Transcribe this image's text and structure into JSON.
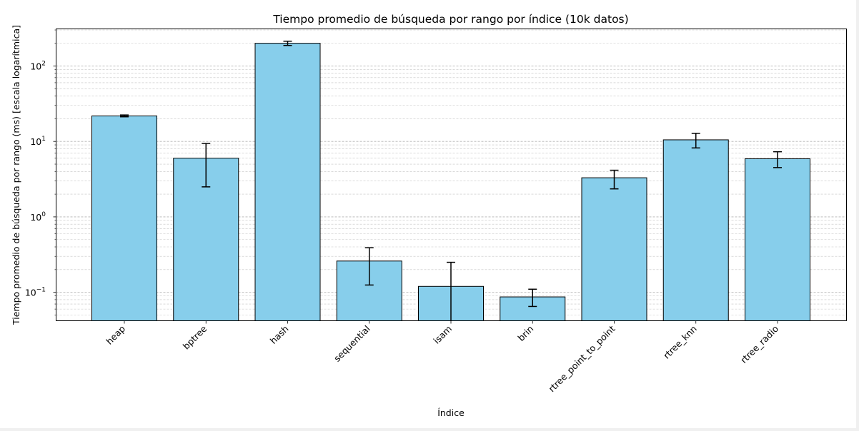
{
  "chart_data": {
    "type": "bar",
    "title": "Tiempo promedio de búsqueda por rango por índice (10k datos)",
    "xlabel": "Índice",
    "ylabel": "Tiempo promedio de búsqueda por rango (ms) [escala logarítmica]",
    "yscale": "log",
    "ylim": [
      0.042,
      310
    ],
    "grid": "y, major and minor, dashed",
    "categories": [
      "heap",
      "bptree",
      "hash",
      "sequential",
      "isam",
      "brin",
      "rtree_point_to_point",
      "rtree_knn",
      "rtree_radio"
    ],
    "values": [
      21.8,
      6.0,
      200,
      0.26,
      0.12,
      0.087,
      3.3,
      10.5,
      5.9
    ],
    "error_low": [
      21.2,
      2.5,
      187,
      0.125,
      0.04,
      0.065,
      2.35,
      8.2,
      4.5
    ],
    "error_high": [
      22.4,
      9.4,
      213,
      0.39,
      0.25,
      0.11,
      4.15,
      12.8,
      7.3
    ],
    "y_ticks": [
      {
        "value": 0.1,
        "base": "10",
        "exp": "−1"
      },
      {
        "value": 1,
        "base": "10",
        "exp": "0"
      },
      {
        "value": 10,
        "base": "10",
        "exp": "1"
      },
      {
        "value": 100,
        "base": "10",
        "exp": "2"
      }
    ],
    "bar_color": "#87ceeb",
    "edge_color": "#000000"
  }
}
